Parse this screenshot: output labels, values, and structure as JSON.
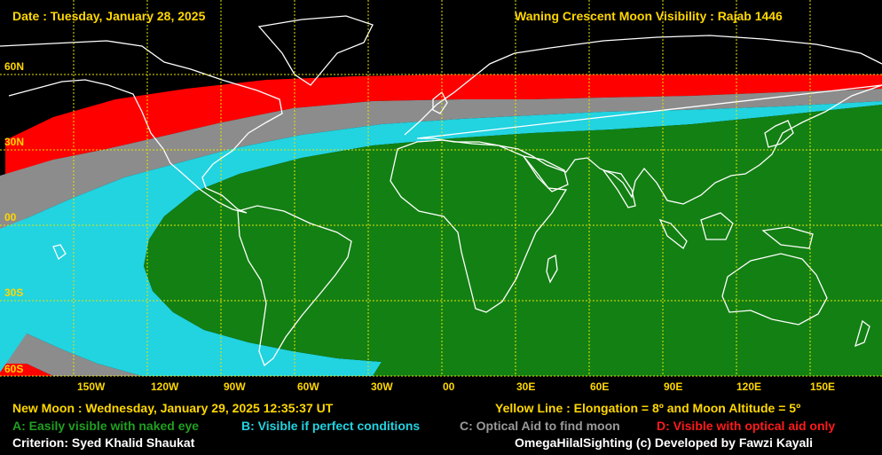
{
  "header": {
    "date": "Date : Tuesday, January 28, 2025",
    "title": "Waning Crescent Moon Visibility : Rajab 1446"
  },
  "lat_labels": [
    "60N",
    "30N",
    "00",
    "30S",
    "60S"
  ],
  "lon_labels": [
    "150W",
    "120W",
    "90W",
    "60W",
    "30W",
    "00",
    "30E",
    "60E",
    "90E",
    "120E",
    "150E"
  ],
  "footer": {
    "new_moon": "New Moon : Wednesday, January 29, 2025  12:35:37  UT",
    "yellow_line": "Yellow Line : Elongation = 8º  and Moon Altitude = 5º",
    "legend_a": "A: Easily visible with naked eye",
    "legend_b": "B: Visible if perfect conditions",
    "legend_c": "C: Optical Aid to find moon",
    "legend_d": "D: Visible with optical aid only",
    "criterion": "Criterion: Syed Khalid Shaukat",
    "credit": "OmegaHilalSighting  (c)  Developed by Fawzi Kayali"
  },
  "colors": {
    "zone_a": "#138013",
    "zone_b": "#22d3e0",
    "zone_c": "#8c8c8c",
    "zone_d": "#ff0000",
    "grid": "#e6e600",
    "coast": "#ffffff"
  }
}
